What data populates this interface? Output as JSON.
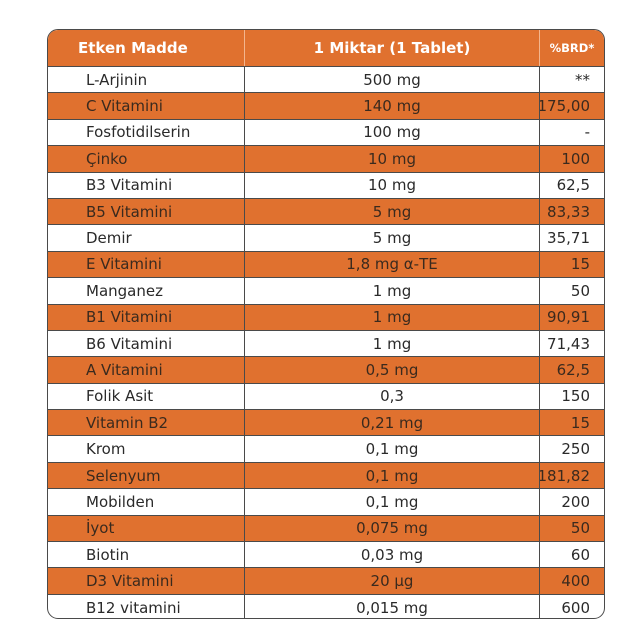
{
  "colors": {
    "accent": "#e0712f",
    "border": "#4a4a4a"
  },
  "header": {
    "col1": "Etken Madde",
    "col2": "1 Miktar (1 Tablet)",
    "col3": "%BRD*"
  },
  "rows": [
    {
      "name": "L-Arjinin",
      "amount": "500 mg",
      "brd": "**"
    },
    {
      "name": "C Vitamini",
      "amount": "140 mg",
      "brd": "175,00"
    },
    {
      "name": "Fosfotidilserin",
      "amount": "100 mg",
      "brd": "-"
    },
    {
      "name": "Çinko",
      "amount": "10 mg",
      "brd": "100"
    },
    {
      "name": "B3 Vitamini",
      "amount": "10 mg",
      "brd": "62,5"
    },
    {
      "name": "B5 Vitamini",
      "amount": "5 mg",
      "brd": "83,33"
    },
    {
      "name": "Demir",
      "amount": "5 mg",
      "brd": "35,71"
    },
    {
      "name": "E Vitamini",
      "amount": "1,8 mg α-TE",
      "brd": "15"
    },
    {
      "name": "Manganez",
      "amount": "1 mg",
      "brd": "50"
    },
    {
      "name": "B1 Vitamini",
      "amount": "1 mg",
      "brd": "90,91"
    },
    {
      "name": "B6 Vitamini",
      "amount": "1 mg",
      "brd": "71,43"
    },
    {
      "name": "A Vitamini",
      "amount": "0,5 mg",
      "brd": "62,5"
    },
    {
      "name": "Folik Asit",
      "amount": "0,3",
      "brd": "150"
    },
    {
      "name": "Vitamin B2",
      "amount": "0,21 mg",
      "brd": "15"
    },
    {
      "name": "Krom",
      "amount": "0,1 mg",
      "brd": "250"
    },
    {
      "name": "Selenyum",
      "amount": "0,1 mg",
      "brd": "181,82"
    },
    {
      "name": "Mobilden",
      "amount": "0,1 mg",
      "brd": "200"
    },
    {
      "name": "İyot",
      "amount": "0,075 mg",
      "brd": "50"
    },
    {
      "name": "Biotin",
      "amount": "0,03 mg",
      "brd": "60"
    },
    {
      "name": "D3 Vitamini",
      "amount": "20 µg",
      "brd": "400"
    },
    {
      "name": "B12 vitamini",
      "amount": "0,015 mg",
      "brd": "600"
    }
  ]
}
